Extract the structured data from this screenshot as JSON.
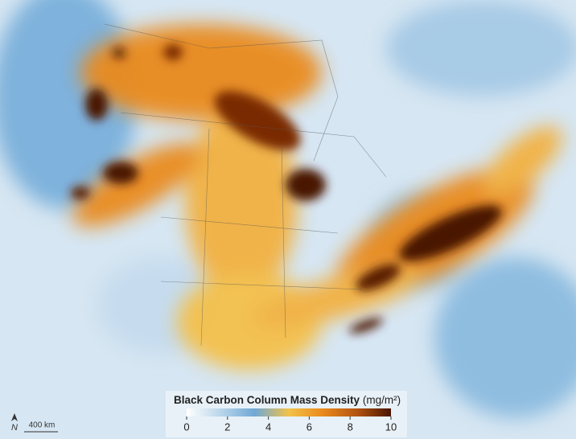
{
  "colorbar": {
    "title": "Black Carbon Column Mass Density",
    "unit": "(mg/m²)",
    "range": [
      0,
      10
    ],
    "ticks": [
      0,
      2,
      4,
      6,
      8,
      10
    ],
    "colors": [
      "#ffffff",
      "#b9d6ea",
      "#6fa8d6",
      "#f2c24a",
      "#e98a1c",
      "#b35412",
      "#4a1400"
    ]
  },
  "north_label": "N",
  "scale_bar": {
    "label": "400 km"
  }
}
